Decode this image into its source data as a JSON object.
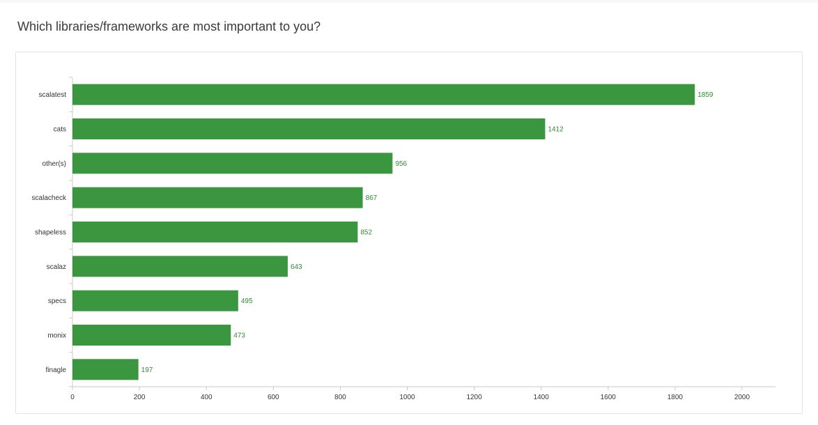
{
  "question": {
    "title": "Which libraries/frameworks are most important to you?"
  },
  "colors": {
    "bar": "#3a963f",
    "label": "#2e8b32",
    "axis": "#c8c8c8",
    "text": "#333333"
  },
  "chart_data": {
    "type": "bar",
    "orientation": "horizontal",
    "title": "Which libraries/frameworks are most important to you?",
    "xlabel": "",
    "ylabel": "",
    "categories": [
      "scalatest",
      "cats",
      "other(s)",
      "scalacheck",
      "shapeless",
      "scalaz",
      "specs",
      "monix",
      "finagle"
    ],
    "values": [
      1859,
      1412,
      956,
      867,
      852,
      643,
      495,
      473,
      197
    ],
    "xlim": [
      0,
      2100
    ],
    "xticks": [
      0,
      200,
      400,
      600,
      800,
      1000,
      1200,
      1400,
      1600,
      1800,
      2000
    ],
    "grid": false,
    "legend": "none"
  }
}
